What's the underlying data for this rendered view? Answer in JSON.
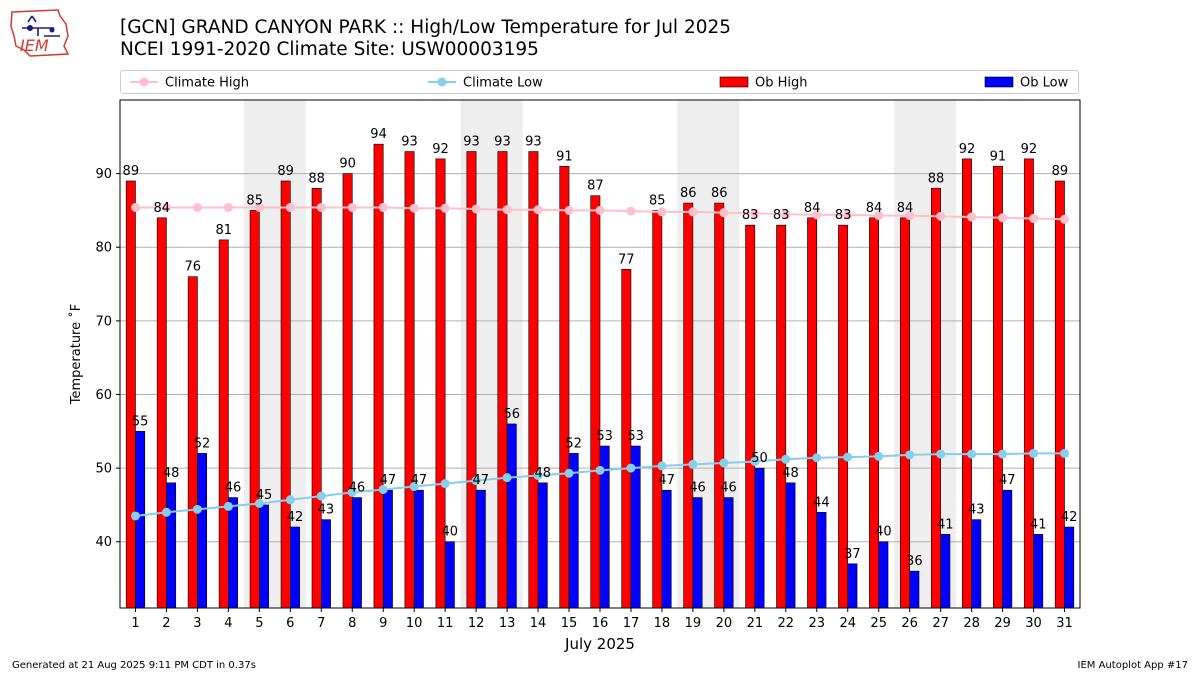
{
  "logo_text": "IEM",
  "footer": {
    "generated": "Generated at 21 Aug 2025 9:11 PM CDT in 0.37s",
    "app": "IEM Autoplot App #17"
  },
  "colors": {
    "ob_high": "#ff0000",
    "ob_low": "#0000ff",
    "climate_high": "#ffc0cb",
    "climate_low": "#87ceeb",
    "weekend_shade": "#eeeeee",
    "grid": "#b0b0b0"
  },
  "chart_data": {
    "type": "bar",
    "title": "[GCN] GRAND CANYON PARK :: High/Low Temperature for Jul 2025",
    "subtitle": "NCEI 1991-2020 Climate Site: USW00003195",
    "xlabel": "July 2025",
    "ylabel": "Temperature ˚F",
    "ylim": [
      31,
      100
    ],
    "yticks": [
      40,
      50,
      60,
      70,
      80,
      90
    ],
    "grid": "horizontal",
    "legend_position": "top",
    "x": [
      1,
      2,
      3,
      4,
      5,
      6,
      7,
      8,
      9,
      10,
      11,
      12,
      13,
      14,
      15,
      16,
      17,
      18,
      19,
      20,
      21,
      22,
      23,
      24,
      25,
      26,
      27,
      28,
      29,
      30,
      31
    ],
    "shaded_days": [
      [
        5,
        6
      ],
      [
        12,
        13
      ],
      [
        19,
        20
      ],
      [
        26,
        27
      ]
    ],
    "series": [
      {
        "name": "Climate High",
        "kind": "line",
        "values": [
          85.4,
          85.4,
          85.4,
          85.4,
          85.4,
          85.4,
          85.4,
          85.4,
          85.4,
          85.3,
          85.3,
          85.2,
          85.1,
          85.1,
          85.0,
          85.0,
          84.9,
          84.8,
          84.8,
          84.7,
          84.6,
          84.5,
          84.4,
          84.4,
          84.3,
          84.3,
          84.2,
          84.1,
          84.0,
          83.9,
          83.8
        ]
      },
      {
        "name": "Climate Low",
        "kind": "line",
        "values": [
          43.5,
          44.0,
          44.4,
          44.8,
          45.2,
          45.7,
          46.2,
          46.7,
          47.1,
          47.5,
          47.9,
          48.3,
          48.7,
          49.0,
          49.3,
          49.7,
          50.0,
          50.3,
          50.5,
          50.7,
          50.9,
          51.2,
          51.4,
          51.5,
          51.6,
          51.8,
          51.9,
          51.9,
          51.9,
          52.0,
          52.0
        ]
      },
      {
        "name": "Ob High",
        "kind": "bar",
        "values": [
          89,
          84,
          76,
          81,
          85,
          89,
          88,
          90,
          94,
          93,
          92,
          93,
          93,
          93,
          91,
          87,
          77,
          85,
          86,
          86,
          83,
          83,
          84,
          83,
          84,
          84,
          88,
          92,
          91,
          92,
          89
        ]
      },
      {
        "name": "Ob Low",
        "kind": "bar",
        "values": [
          55,
          48,
          52,
          46,
          45,
          42,
          43,
          46,
          47,
          47,
          40,
          47,
          56,
          48,
          52,
          53,
          53,
          47,
          46,
          46,
          50,
          48,
          44,
          37,
          40,
          36,
          41,
          43,
          47,
          41,
          42
        ]
      }
    ]
  }
}
